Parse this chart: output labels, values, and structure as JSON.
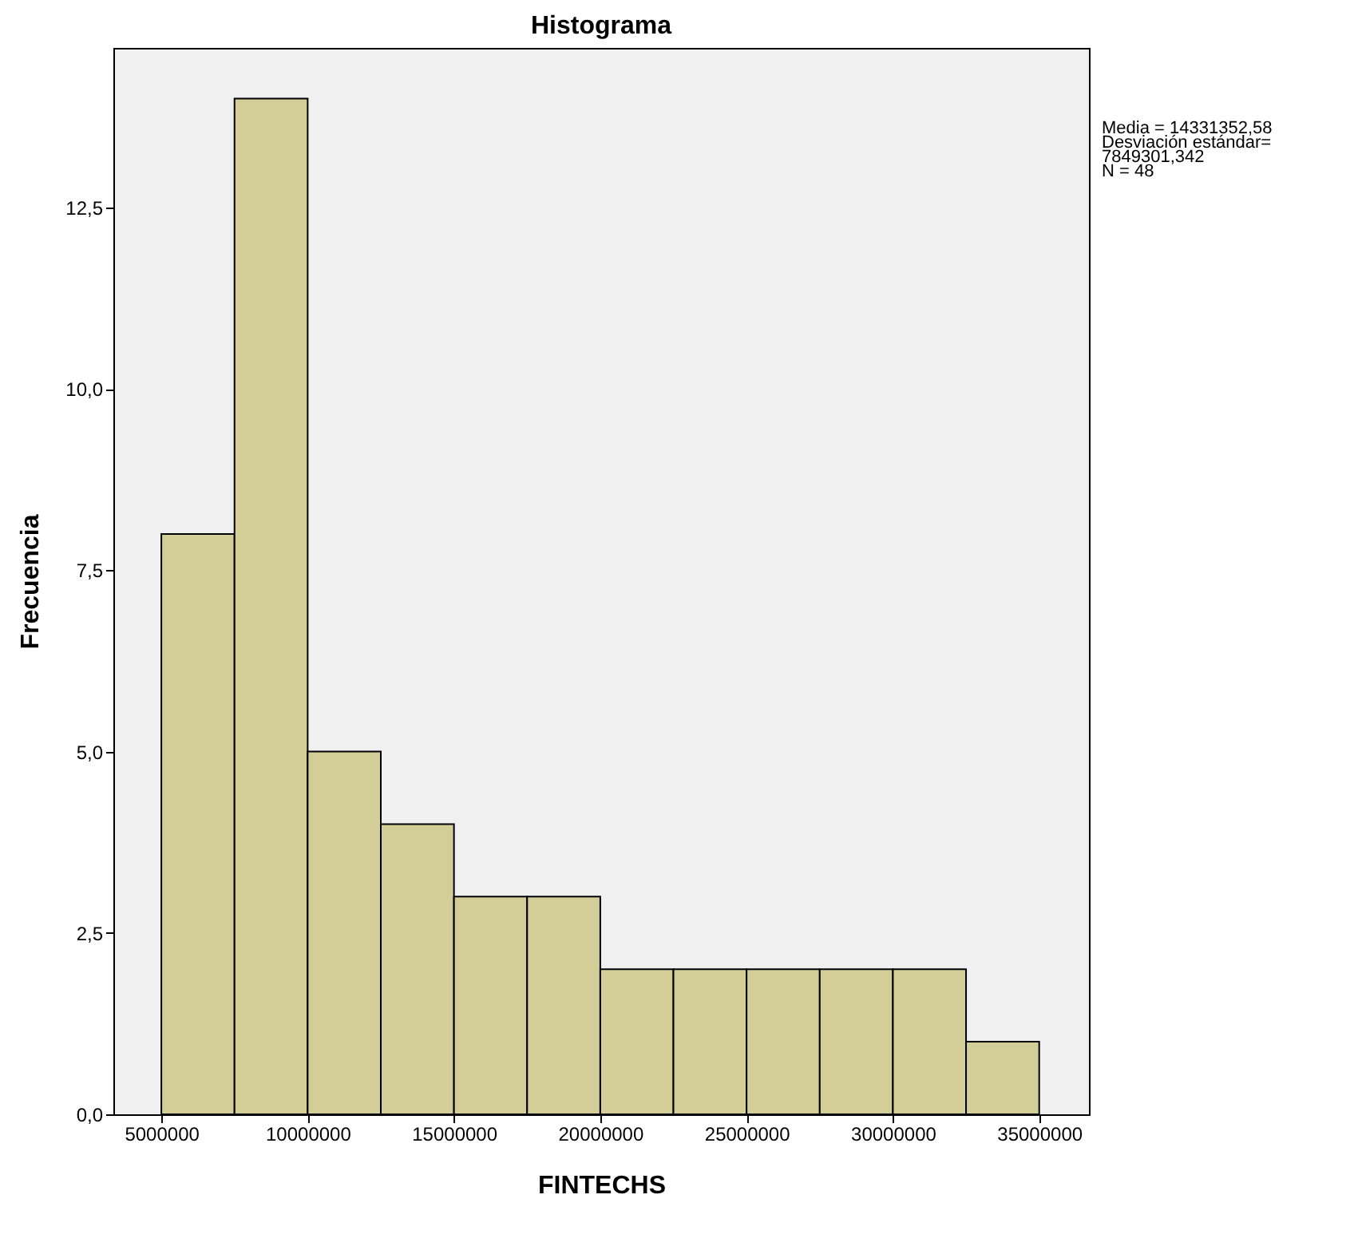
{
  "chart_data": {
    "type": "histogram",
    "title": "Histograma",
    "xlabel": "FINTECHS",
    "ylabel": "Frecuencia",
    "bins": [
      5000000,
      7500000,
      10000000,
      12500000,
      15000000,
      17500000,
      20000000,
      22500000,
      25000000,
      27500000,
      30000000,
      32500000,
      35000000
    ],
    "values": [
      8,
      14,
      5,
      4,
      3,
      3,
      2,
      2,
      2,
      2,
      2,
      1
    ],
    "color": "#d3ce97",
    "xlim": [
      3360000,
      36700000
    ],
    "xticks": [
      5000000,
      10000000,
      15000000,
      20000000,
      25000000,
      30000000,
      35000000
    ],
    "ylim": [
      0,
      14.7
    ],
    "yticks": [
      {
        "value": 0,
        "label": "0,0"
      },
      {
        "value": 2.5,
        "label": "2,5"
      },
      {
        "value": 5,
        "label": "5,0"
      },
      {
        "value": 7.5,
        "label": "7,5"
      },
      {
        "value": 10,
        "label": "10,0"
      },
      {
        "value": 12.5,
        "label": "12,5"
      }
    ],
    "annotations": [
      "Media = 14331352,58",
      "Desviación estándar=",
      "7849301,342",
      "N = 48"
    ],
    "grid": false
  }
}
